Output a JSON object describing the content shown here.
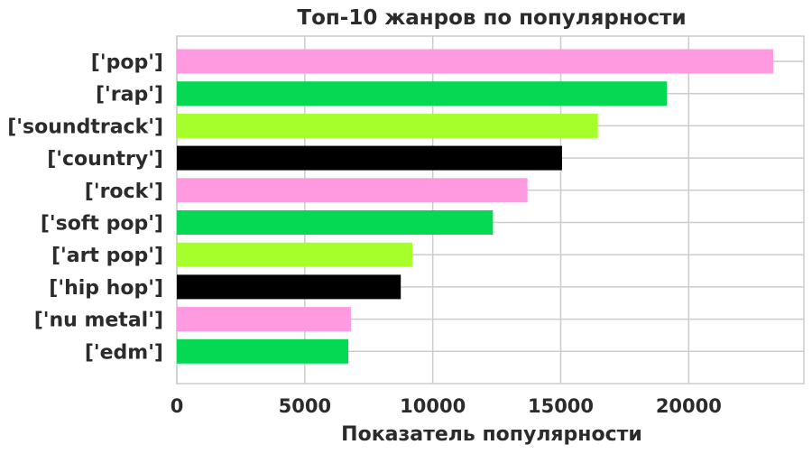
{
  "chart_data": {
    "type": "bar",
    "orientation": "horizontal",
    "title": "Топ-10 жанров по популярности",
    "xlabel": "Показатель популярности",
    "ylabel": "",
    "categories": [
      "['pop']",
      "['rap']",
      "['soundtrack']",
      "['country']",
      "['rock']",
      "['soft pop']",
      "['art pop']",
      "['hip hop']",
      "['nu metal']",
      "['edm']"
    ],
    "values": [
      23300,
      19150,
      16450,
      15050,
      13700,
      12350,
      9200,
      8750,
      6800,
      6700
    ],
    "bar_colors": [
      "#ff99e0",
      "#05d853",
      "#a6ff2b",
      "#000000",
      "#ff99e0",
      "#05d853",
      "#a6ff2b",
      "#000000",
      "#ff99e0",
      "#05d853"
    ],
    "xlim": [
      0,
      24500
    ],
    "xticks": [
      0,
      5000,
      10000,
      15000,
      20000
    ],
    "grid": true
  }
}
